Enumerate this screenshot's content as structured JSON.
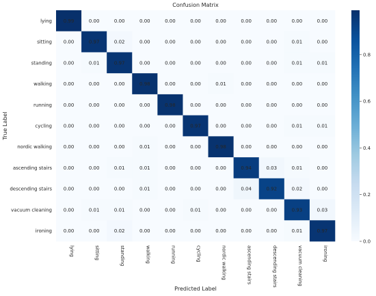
{
  "chart_data": {
    "type": "heatmap",
    "title": "Confusion Matrix",
    "xlabel": "Predicted Label",
    "ylabel": "True Label",
    "labels": [
      "lying",
      "sitting",
      "standing",
      "walking",
      "running",
      "cycling",
      "nordic walking",
      "ascending stairs",
      "descending stairs",
      "vacuum cleaning",
      "ironing"
    ],
    "matrix": [
      [
        0.99,
        0.0,
        0.0,
        0.0,
        0.0,
        0.0,
        0.0,
        0.0,
        0.0,
        0.0,
        0.0
      ],
      [
        0.0,
        0.97,
        0.02,
        0.0,
        0.0,
        0.0,
        0.0,
        0.0,
        0.0,
        0.01,
        0.0
      ],
      [
        0.0,
        0.01,
        0.97,
        0.0,
        0.0,
        0.0,
        0.0,
        0.0,
        0.0,
        0.01,
        0.01
      ],
      [
        0.0,
        0.0,
        0.0,
        0.98,
        0.0,
        0.0,
        0.01,
        0.0,
        0.0,
        0.0,
        0.0
      ],
      [
        0.0,
        0.0,
        0.0,
        0.0,
        0.98,
        0.0,
        0.0,
        0.0,
        0.0,
        0.0,
        0.0
      ],
      [
        0.0,
        0.0,
        0.0,
        0.0,
        0.0,
        0.97,
        0.0,
        0.0,
        0.0,
        0.01,
        0.01
      ],
      [
        0.0,
        0.0,
        0.0,
        0.01,
        0.0,
        0.0,
        0.98,
        0.0,
        0.0,
        0.0,
        0.0
      ],
      [
        0.0,
        0.0,
        0.01,
        0.01,
        0.0,
        0.0,
        0.0,
        0.94,
        0.03,
        0.01,
        0.0
      ],
      [
        0.0,
        0.0,
        0.0,
        0.01,
        0.0,
        0.0,
        0.0,
        0.04,
        0.92,
        0.02,
        0.0
      ],
      [
        0.0,
        0.01,
        0.01,
        0.0,
        0.0,
        0.01,
        0.0,
        0.0,
        0.0,
        0.93,
        0.03
      ],
      [
        0.0,
        0.0,
        0.02,
        0.0,
        0.0,
        0.0,
        0.0,
        0.0,
        0.0,
        0.01,
        0.97
      ]
    ],
    "colorbar": {
      "min": 0.0,
      "max": 0.99,
      "ticks": [
        "0.0",
        "0.2",
        "0.4",
        "0.6",
        "0.8"
      ],
      "colormap": "Blues"
    },
    "grid": false,
    "legend": "colorbar-right"
  }
}
